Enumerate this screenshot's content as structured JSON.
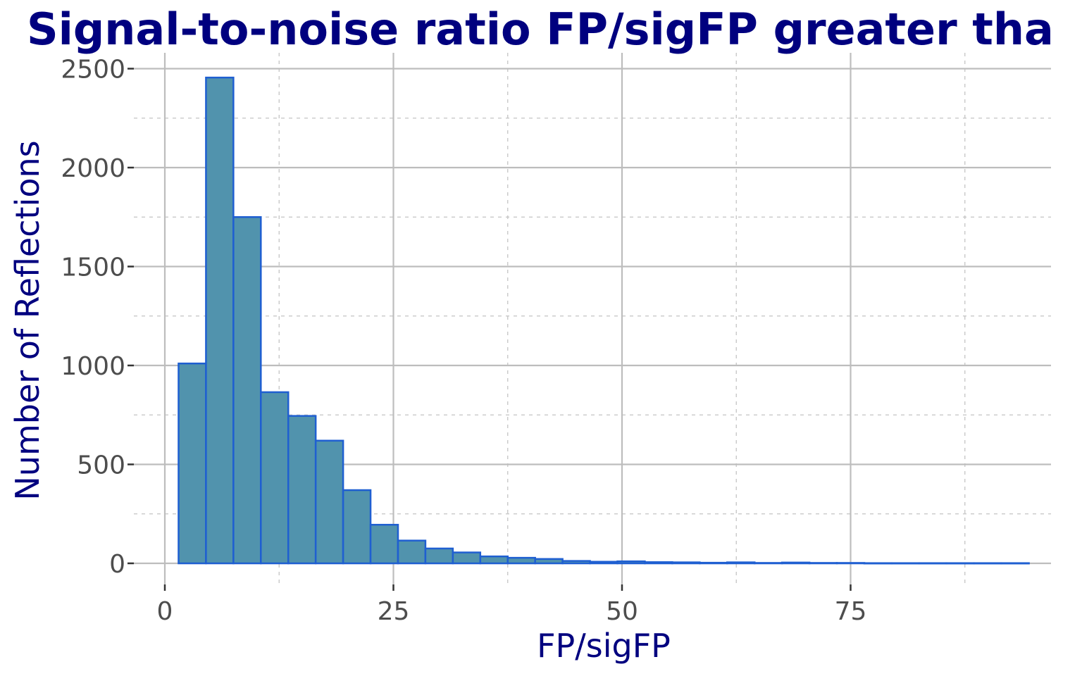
{
  "chart_data": {
    "type": "bar",
    "title": "Signal-to-noise ratio FP/sigFP greater tha",
    "xlabel": "FP/sigFP",
    "ylabel": "Number of Reflections",
    "xlim": [
      0,
      97
    ],
    "ylim": [
      0,
      2500
    ],
    "x_ticks": [
      0,
      25,
      50,
      75
    ],
    "x_tick_labels": [
      "0",
      "25",
      "50",
      "75"
    ],
    "y_ticks": [
      0,
      500,
      1000,
      1500,
      2000,
      2500
    ],
    "y_tick_labels": [
      "0",
      "500",
      "1000",
      "1500",
      "2000",
      "2500"
    ],
    "bin_width": 3,
    "bin_starts": [
      1.5,
      4.5,
      7.5,
      10.5,
      13.5,
      16.5,
      19.5,
      22.5,
      25.5,
      28.5,
      31.5,
      34.5,
      37.5,
      40.5,
      43.5,
      46.5,
      49.5,
      52.5,
      55.5,
      58.5,
      61.5,
      64.5,
      67.5,
      70.5,
      73.5,
      76.5,
      79.5,
      82.5,
      85.5,
      88.5,
      91.5
    ],
    "values": [
      1010,
      2455,
      1750,
      865,
      745,
      620,
      370,
      195,
      115,
      75,
      55,
      35,
      28,
      22,
      12,
      8,
      10,
      6,
      5,
      3,
      5,
      2,
      4,
      2,
      2,
      1,
      1,
      1,
      1,
      1,
      1
    ],
    "grid": true,
    "legend": "none",
    "colors": {
      "bar_fill": "#5193ad",
      "bar_stroke": "#1f5fd1",
      "title": "#00007f",
      "axis_title": "#00007f",
      "tick_label": "#4d4d4d",
      "grid": "#bdbdbd"
    }
  }
}
